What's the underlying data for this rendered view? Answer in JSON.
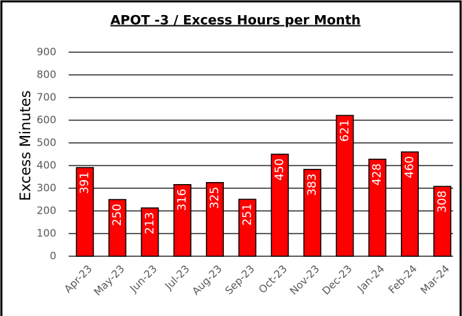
{
  "chart_data": {
    "type": "bar",
    "title": "APOT -3 / Excess Hours per Month",
    "y_label": "Excess Minutes",
    "categories": [
      "Apr-23",
      "May-23",
      "Jun-23",
      "Jul-23",
      "Aug-23",
      "Sep-23",
      "Oct-23",
      "Nov-23",
      "Dec-23",
      "Jan-24",
      "Feb-24",
      "Mar-24"
    ],
    "values": [
      391,
      250,
      213,
      316,
      325,
      251,
      450,
      383,
      621,
      428,
      460,
      308
    ],
    "color": "#ff0000",
    "ylim": [
      0,
      900
    ],
    "yticks": [
      0,
      100,
      200,
      300,
      400,
      500,
      600,
      700,
      800,
      900
    ],
    "grid": true
  }
}
